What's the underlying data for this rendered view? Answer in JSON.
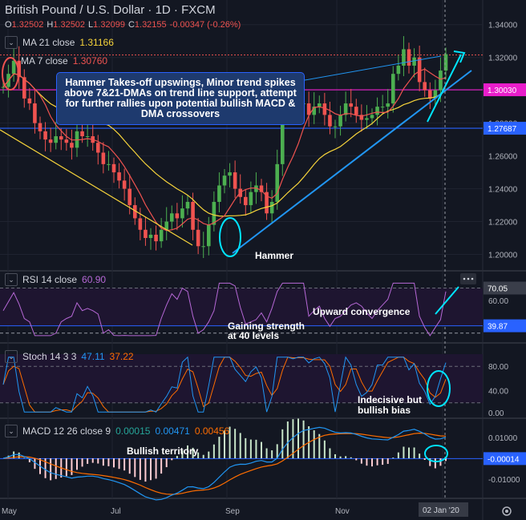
{
  "header": {
    "title": "British Pound / U.S. Dollar · 1D · FXCM",
    "ohlc": [
      {
        "k": "O",
        "v": "1.32502"
      },
      {
        "k": "H",
        "v": "1.32502"
      },
      {
        "k": "L",
        "v": "1.32099"
      },
      {
        "k": "C",
        "v": "1.32155"
      },
      {
        "k": "chg",
        "v": "-0.00347 (-0.26%)"
      }
    ]
  },
  "legend": {
    "ma21": {
      "label": "MA 21 close",
      "value": "1.31166",
      "color": "#f7d43b"
    },
    "ma7": {
      "label": "MA 7 close",
      "value": "1.30760",
      "color": "#ef5350"
    },
    "rsi": {
      "label": "RSI 14 close",
      "value": "60.90",
      "color": "#b668d6"
    },
    "stoch": {
      "label": "Stoch 14 3 3",
      "k": "47.11",
      "d": "37.22",
      "kcolor": "#2196f3",
      "dcolor": "#ff6d00"
    },
    "macd": {
      "label": "MACD 12 26 close 9",
      "v1": "0.00015",
      "v2": "0.00471",
      "v3": "0.00456",
      "c1": "#26a69a",
      "c2": "#2196f3",
      "c3": "#ff6d00"
    }
  },
  "annotations": {
    "note": "Hammer Takes-off upswings, Minor trend spikes above 7&21-DMAs on trend line support, attempt for further rallies upon potential bullish MACD & DMA crossovers",
    "hammer": "Hammer",
    "upward": "Upward convergence",
    "gaining1": "Gaining strength",
    "gaining2": "at 40 levels",
    "indecisive1": "Indecisive but",
    "indecisive2": "bullish bias",
    "bullish": "Bullish territory"
  },
  "price_axis": {
    "ticks": [
      "1.34000",
      "1.32000",
      "1.30000",
      "1.28000",
      "1.26000",
      "1.24000",
      "1.22000",
      "1.20000"
    ],
    "labels": [
      {
        "text": "1.30030",
        "bg": "#e91ecb"
      },
      {
        "text": "1.27687",
        "bg": "#2962ff"
      }
    ]
  },
  "rsi_axis": {
    "ticks": [
      "60.00"
    ],
    "labels": [
      {
        "text": "70.05",
        "bg": "#3a3e4a"
      },
      {
        "text": "39.87",
        "bg": "#2962ff"
      }
    ]
  },
  "stoch_axis": {
    "ticks": [
      "80.00",
      "40.00",
      "0.00"
    ]
  },
  "macd_axis": {
    "ticks": [
      "0.01000",
      "-0.01000"
    ],
    "labels": [
      {
        "text": "-0.00014",
        "bg": "#2962ff"
      }
    ]
  },
  "time_axis": {
    "labels": [
      "May",
      "Jul",
      "Sep",
      "Nov"
    ],
    "current": "02 Jan '20"
  },
  "chart_data": {
    "type": "candlestick",
    "instrument": "GBP/USD",
    "timeframe": "1D",
    "ylim": [
      1.19,
      1.355
    ],
    "levels": {
      "resistance": 1.3003,
      "support": 1.27687
    },
    "rsi_levels": [
      70.05,
      39.87
    ],
    "series_close": [
      1.302,
      1.31,
      1.318,
      1.308,
      1.295,
      1.292,
      1.28,
      1.275,
      1.27,
      1.268,
      1.272,
      1.27,
      1.268,
      1.265,
      1.275,
      1.272,
      1.272,
      1.268,
      1.262,
      1.255,
      1.255,
      1.25,
      1.245,
      1.24,
      1.23,
      1.222,
      1.215,
      1.21,
      1.212,
      1.208,
      1.215,
      1.22,
      1.225,
      1.222,
      1.228,
      1.232,
      1.215,
      1.205,
      1.205,
      1.218,
      1.232,
      1.242,
      1.248,
      1.25,
      1.24,
      1.235,
      1.23,
      1.238,
      1.242,
      1.238,
      1.225,
      1.232,
      1.255,
      1.29,
      1.29,
      1.288,
      1.292,
      1.292,
      1.285,
      1.29,
      1.292,
      1.285,
      1.278,
      1.278,
      1.285,
      1.292,
      1.29,
      1.285,
      1.282,
      1.283,
      1.285,
      1.29,
      1.29,
      1.292,
      1.31,
      1.315,
      1.325,
      1.315,
      1.32,
      1.305,
      1.3,
      1.295,
      1.3,
      1.312,
      1.322
    ]
  }
}
